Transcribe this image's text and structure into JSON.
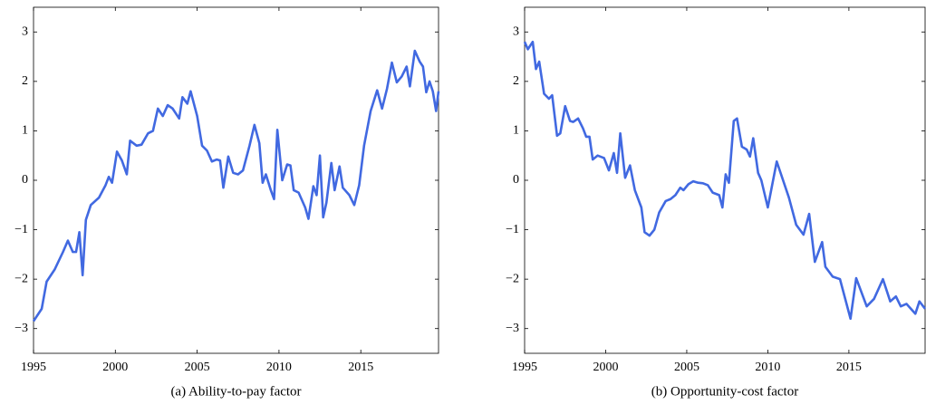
{
  "chart_data": [
    {
      "type": "line",
      "title": "(a)  Ability-to-pay factor",
      "xlim": [
        1995,
        2019.75
      ],
      "ylim": [
        -3.5,
        3.5
      ],
      "xticks": [
        1995,
        2000,
        2005,
        2010,
        2015
      ],
      "yticks": [
        {
          "value": -3,
          "label": "−3"
        },
        {
          "value": -2,
          "label": "−2"
        },
        {
          "value": -1,
          "label": "−1"
        },
        0,
        1,
        2,
        3
      ],
      "x": [
        1995.0,
        1995.5,
        1995.8,
        1996.3,
        1996.8,
        1997.1,
        1997.4,
        1997.6,
        1997.8,
        1998.0,
        1998.2,
        1998.5,
        1999.0,
        1999.4,
        1999.6,
        1999.8,
        2000.1,
        2000.4,
        2000.7,
        2000.9,
        2001.3,
        2001.6,
        2002.0,
        2002.3,
        2002.6,
        2002.9,
        2003.2,
        2003.5,
        2003.9,
        2004.1,
        2004.4,
        2004.6,
        2005.0,
        2005.3,
        2005.6,
        2005.9,
        2006.2,
        2006.4,
        2006.6,
        2006.9,
        2007.2,
        2007.5,
        2007.8,
        2008.2,
        2008.5,
        2008.8,
        2009.0,
        2009.2,
        2009.5,
        2009.7,
        2009.9,
        2010.2,
        2010.5,
        2010.7,
        2010.9,
        2011.2,
        2011.6,
        2011.8,
        2012.1,
        2012.3,
        2012.5,
        2012.7,
        2012.9,
        2013.2,
        2013.4,
        2013.7,
        2013.9,
        2014.3,
        2014.6,
        2014.9,
        2015.2,
        2015.6,
        2016.0,
        2016.3,
        2016.6,
        2016.9,
        2017.2,
        2017.5,
        2017.8,
        2018.0,
        2018.3,
        2018.6,
        2018.8,
        2019.0,
        2019.2,
        2019.4,
        2019.6,
        2019.75
      ],
      "series": [
        {
          "color": "#4169e1",
          "values": [
            -2.85,
            -2.6,
            -2.05,
            -1.8,
            -1.45,
            -1.22,
            -1.45,
            -1.45,
            -1.05,
            -1.92,
            -0.8,
            -0.5,
            -0.35,
            -0.1,
            0.07,
            -0.05,
            0.58,
            0.4,
            0.12,
            0.8,
            0.7,
            0.72,
            0.95,
            1.0,
            1.45,
            1.3,
            1.52,
            1.45,
            1.25,
            1.68,
            1.55,
            1.8,
            1.3,
            0.7,
            0.6,
            0.38,
            0.42,
            0.4,
            -0.15,
            0.48,
            0.15,
            0.12,
            0.2,
            0.7,
            1.12,
            0.75,
            -0.05,
            0.12,
            -0.2,
            -0.38,
            1.02,
            0.0,
            0.32,
            0.3,
            -0.2,
            -0.25,
            -0.55,
            -0.78,
            -0.12,
            -0.3,
            0.5,
            -0.75,
            -0.45,
            0.35,
            -0.2,
            0.28,
            -0.15,
            -0.3,
            -0.5,
            -0.1,
            0.7,
            1.4,
            1.82,
            1.45,
            1.85,
            2.38,
            1.98,
            2.1,
            2.3,
            1.9,
            2.62,
            2.4,
            2.3,
            1.78,
            2.0,
            1.8,
            1.4,
            1.8
          ]
        }
      ]
    },
    {
      "type": "line",
      "title": "(b)  Opportunity-cost factor",
      "xlim": [
        1995,
        2019.7
      ],
      "ylim": [
        -3.5,
        3.5
      ],
      "xticks": [
        1995,
        2000,
        2005,
        2010,
        2015
      ],
      "yticks": [
        {
          "value": -3,
          "label": "−3"
        },
        {
          "value": -2,
          "label": "−2"
        },
        {
          "value": -1,
          "label": "−1"
        },
        0,
        1,
        2,
        3
      ],
      "x": [
        1995.0,
        1995.2,
        1995.5,
        1995.7,
        1995.9,
        1996.2,
        1996.5,
        1996.7,
        1997.0,
        1997.2,
        1997.5,
        1997.8,
        1998.0,
        1998.3,
        1998.6,
        1998.8,
        1999.0,
        1999.2,
        1999.5,
        1999.9,
        2000.2,
        2000.5,
        2000.7,
        2000.9,
        2001.2,
        2001.5,
        2001.8,
        2002.2,
        2002.4,
        2002.7,
        2003.0,
        2003.3,
        2003.7,
        2004.0,
        2004.3,
        2004.6,
        2004.8,
        2005.1,
        2005.4,
        2005.7,
        2006.0,
        2006.3,
        2006.6,
        2007.0,
        2007.2,
        2007.4,
        2007.6,
        2007.9,
        2008.1,
        2008.4,
        2008.7,
        2008.9,
        2009.1,
        2009.4,
        2009.6,
        2010.0,
        2010.55,
        2011.3,
        2011.75,
        2012.2,
        2012.55,
        2012.9,
        2013.35,
        2013.55,
        2014.0,
        2014.45,
        2015.1,
        2015.45,
        2016.1,
        2016.55,
        2017.1,
        2017.55,
        2017.9,
        2018.2,
        2018.55,
        2019.1,
        2019.35,
        2019.7
      ],
      "series": [
        {
          "color": "#4169e1",
          "values": [
            2.8,
            2.65,
            2.8,
            2.25,
            2.4,
            1.75,
            1.65,
            1.72,
            0.9,
            0.95,
            1.5,
            1.2,
            1.18,
            1.25,
            1.05,
            0.88,
            0.88,
            0.42,
            0.5,
            0.45,
            0.2,
            0.55,
            0.15,
            0.95,
            0.05,
            0.3,
            -0.2,
            -0.55,
            -1.05,
            -1.12,
            -1.0,
            -0.65,
            -0.42,
            -0.38,
            -0.3,
            -0.15,
            -0.2,
            -0.08,
            -0.02,
            -0.05,
            -0.06,
            -0.1,
            -0.25,
            -0.3,
            -0.55,
            0.12,
            -0.05,
            1.2,
            1.25,
            0.68,
            0.62,
            0.48,
            0.85,
            0.15,
            0.0,
            -0.55,
            0.38,
            -0.35,
            -0.9,
            -1.1,
            -0.68,
            -1.65,
            -1.25,
            -1.75,
            -1.95,
            -2.0,
            -2.8,
            -1.98,
            -2.55,
            -2.4,
            -2.0,
            -2.45,
            -2.35,
            -2.55,
            -2.5,
            -2.7,
            -2.45,
            -2.6
          ]
        }
      ]
    }
  ]
}
